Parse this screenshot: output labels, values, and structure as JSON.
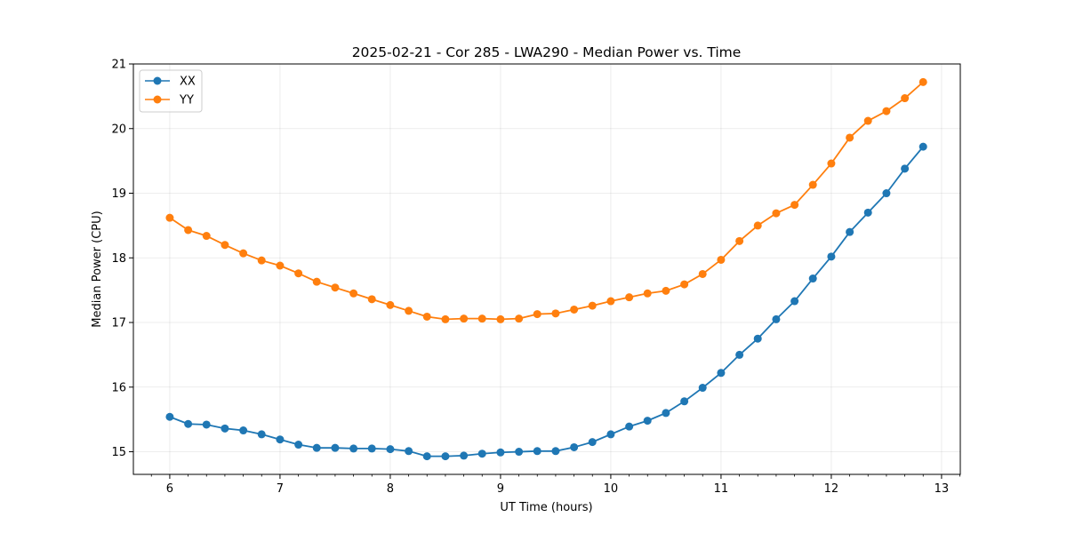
{
  "chart_data": {
    "type": "line",
    "title": "2025-02-21 - Cor 285 - LWA290 - Median Power vs. Time",
    "xlabel": "UT Time (hours)",
    "ylabel": "Median Power (CPU)",
    "xlim": [
      5.67,
      13.17
    ],
    "ylim": [
      14.65,
      21.0
    ],
    "xticks": [
      6,
      7,
      8,
      9,
      10,
      11,
      12,
      13
    ],
    "yticks": [
      15,
      16,
      17,
      18,
      19,
      20,
      21
    ],
    "grid": true,
    "legend_position": "upper-left",
    "x": [
      6.0,
      6.167,
      6.333,
      6.5,
      6.667,
      6.833,
      7.0,
      7.167,
      7.333,
      7.5,
      7.667,
      7.833,
      8.0,
      8.167,
      8.333,
      8.5,
      8.667,
      8.833,
      9.0,
      9.167,
      9.333,
      9.5,
      9.667,
      9.833,
      10.0,
      10.167,
      10.333,
      10.5,
      10.667,
      10.833,
      11.0,
      11.167,
      11.333,
      11.5,
      11.667,
      11.833,
      12.0,
      12.167,
      12.333,
      12.5,
      12.667,
      12.833
    ],
    "series": [
      {
        "name": "XX",
        "color": "#1f77b4",
        "values": [
          15.54,
          15.43,
          15.42,
          15.36,
          15.33,
          15.27,
          15.19,
          15.11,
          15.06,
          15.06,
          15.05,
          15.05,
          15.04,
          15.01,
          14.93,
          14.93,
          14.94,
          14.97,
          14.99,
          15.0,
          15.01,
          15.01,
          15.07,
          15.15,
          15.27,
          15.39,
          15.48,
          15.6,
          15.78,
          15.99,
          16.22,
          16.5,
          16.75,
          17.05,
          17.33,
          17.68,
          18.02,
          18.4,
          18.7,
          19.0,
          19.38,
          19.72
        ]
      },
      {
        "name": "YY",
        "color": "#ff7f0e",
        "values": [
          18.62,
          18.43,
          18.34,
          18.2,
          18.07,
          17.96,
          17.88,
          17.76,
          17.63,
          17.54,
          17.45,
          17.36,
          17.27,
          17.18,
          17.09,
          17.05,
          17.06,
          17.06,
          17.05,
          17.06,
          17.13,
          17.14,
          17.2,
          17.26,
          17.33,
          17.39,
          17.45,
          17.49,
          17.59,
          17.75,
          17.97,
          18.26,
          18.5,
          18.69,
          18.82,
          19.13,
          19.46,
          19.86,
          20.12,
          20.27,
          20.47,
          20.72
        ]
      }
    ]
  }
}
